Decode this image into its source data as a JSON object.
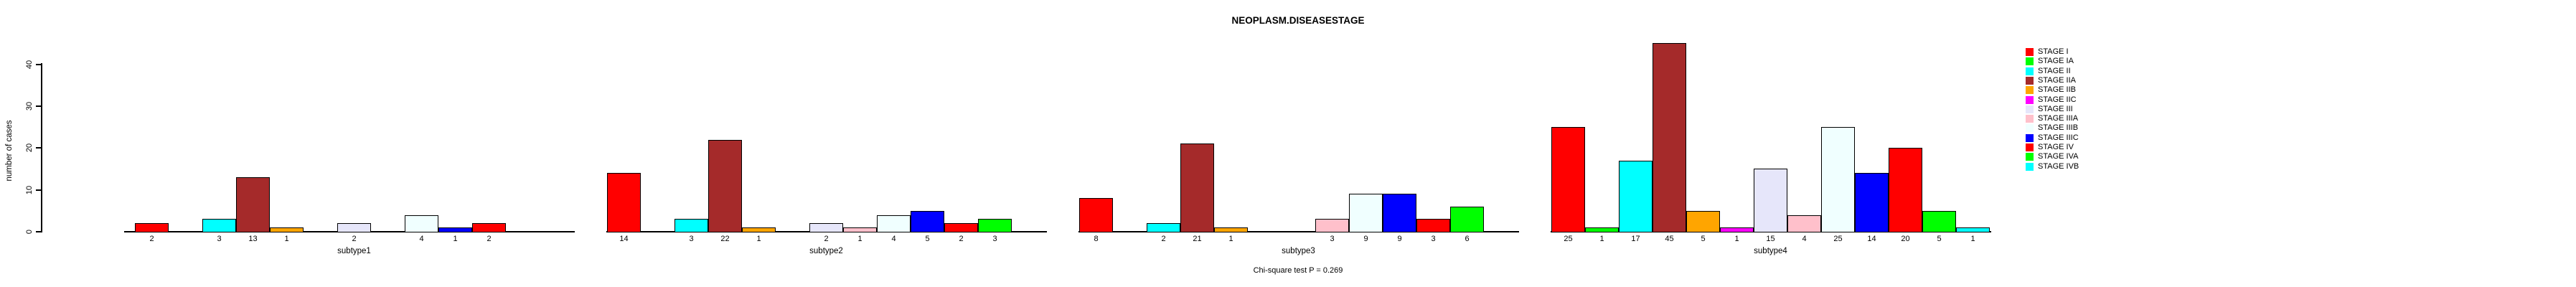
{
  "chart_data": {
    "type": "bar",
    "title": "NEOPLASM.DISEASESTAGE",
    "ylabel": "number of cases",
    "annotation": "Chi-square test P = 0.269",
    "ylim": [
      0,
      40
    ],
    "yticks": [
      0,
      10,
      20,
      30,
      40
    ],
    "grid": false,
    "legend_position": "top-right",
    "stages": [
      {
        "label": "STAGE I",
        "color": "#FF0000"
      },
      {
        "label": "STAGE IA",
        "color": "#00FF00"
      },
      {
        "label": "STAGE II",
        "color": "#00FFFF"
      },
      {
        "label": "STAGE IIA",
        "color": "#A52A2A"
      },
      {
        "label": "STAGE IIB",
        "color": "#FFA500"
      },
      {
        "label": "STAGE IIC",
        "color": "#FF00FF"
      },
      {
        "label": "STAGE III",
        "color": "#E6E6FA"
      },
      {
        "label": "STAGE IIIA",
        "color": "#FFC0CB"
      },
      {
        "label": "STAGE IIIB",
        "color": "#F0FFFF"
      },
      {
        "label": "STAGE IIIC",
        "color": "#0000FF"
      },
      {
        "label": "STAGE IV",
        "color": "#FF0000"
      },
      {
        "label": "STAGE IVA",
        "color": "#00FF00"
      },
      {
        "label": "STAGE IVB",
        "color": "#00FFFF"
      }
    ],
    "groups": [
      {
        "label": "subtype1",
        "values": [
          2,
          0,
          3,
          13,
          1,
          0,
          2,
          0,
          4,
          1,
          2,
          0,
          0
        ]
      },
      {
        "label": "subtype2",
        "values": [
          14,
          0,
          3,
          22,
          1,
          0,
          2,
          1,
          4,
          5,
          2,
          3,
          0
        ]
      },
      {
        "label": "subtype3",
        "values": [
          8,
          0,
          2,
          21,
          1,
          0,
          0,
          3,
          9,
          9,
          3,
          6,
          0
        ]
      },
      {
        "label": "subtype4",
        "values": [
          25,
          1,
          17,
          45,
          5,
          1,
          15,
          4,
          25,
          14,
          20,
          5,
          1
        ]
      }
    ]
  }
}
